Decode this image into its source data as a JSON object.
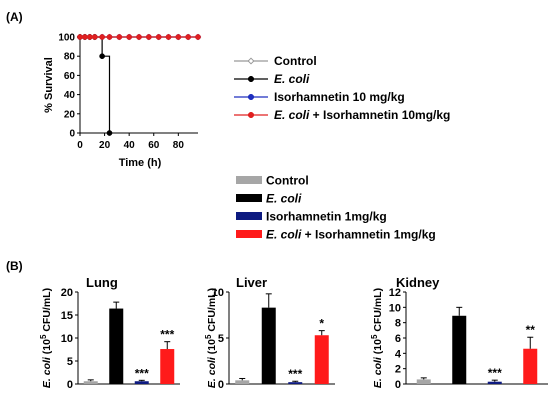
{
  "panel_labels": {
    "a": "(A)",
    "b": "(B)"
  },
  "chart_data": [
    {
      "type": "line",
      "panel": "(A)",
      "xlabel": "Time (h)",
      "ylabel": "% Survival",
      "xlim": [
        0,
        96
      ],
      "ylim": [
        0,
        100
      ],
      "xticks": [
        0,
        20,
        40,
        60,
        80
      ],
      "yticks": [
        0,
        20,
        40,
        60,
        80,
        100
      ],
      "grid": false,
      "legend": "right",
      "series": [
        {
          "name": "Control",
          "color": "#999999",
          "marker": "open-diamond",
          "x": [
            0,
            4,
            8,
            12,
            18,
            24,
            32,
            40,
            48,
            56,
            64,
            72,
            80,
            88,
            96
          ],
          "y": [
            100,
            100,
            100,
            100,
            100,
            100,
            100,
            100,
            100,
            100,
            100,
            100,
            100,
            100,
            100
          ]
        },
        {
          "name": "E. coli",
          "color": "#000000",
          "marker": "circle",
          "x": [
            0,
            4,
            8,
            12,
            18,
            24
          ],
          "y": [
            100,
            100,
            100,
            100,
            80,
            0
          ]
        },
        {
          "name": "Isorhamnetin 10 mg/kg",
          "color": "#1f2fbf",
          "marker": "circle",
          "x": [
            0,
            4,
            8,
            12,
            18,
            24,
            32,
            40,
            48,
            56,
            64,
            72,
            80,
            88,
            96
          ],
          "y": [
            100,
            100,
            100,
            100,
            100,
            100,
            100,
            100,
            100,
            100,
            100,
            100,
            100,
            100,
            100
          ]
        },
        {
          "name": "E. coli + Isorhamnetin 10mg/kg",
          "color": "#e02020",
          "marker": "circle",
          "x": [
            0,
            4,
            8,
            12,
            18,
            24,
            32,
            40,
            48,
            56,
            64,
            72,
            80,
            88,
            96
          ],
          "y": [
            100,
            100,
            100,
            100,
            100,
            100,
            100,
            100,
            100,
            100,
            100,
            100,
            100,
            100,
            100
          ]
        }
      ]
    },
    {
      "type": "bar",
      "panel": "(B)",
      "title": "Lung",
      "ylabel_pre": "E. coli",
      "ylabel_mid": " (10",
      "ylabel_sup": "5",
      "ylabel_post": " CFU/mL)",
      "ylim": [
        0,
        20
      ],
      "yticks": [
        0,
        5,
        10,
        15,
        20
      ],
      "categories": [
        "Control",
        "E. coli",
        "Isorhamnetin 1mg/kg",
        "E. coli + Isorhamnetin 1mg/kg"
      ],
      "values": [
        0.6,
        16.4,
        0.6,
        7.6
      ],
      "errors": [
        0.3,
        1.4,
        0.2,
        1.6
      ],
      "significance": [
        "",
        "",
        "***",
        "***"
      ]
    },
    {
      "type": "bar",
      "panel": "(B)",
      "title": "Liver",
      "ylabel_pre": "E. coli",
      "ylabel_mid": " (10",
      "ylabel_sup": "5",
      "ylabel_post": " CFU/mL)",
      "ylim": [
        0,
        10
      ],
      "yticks": [
        0,
        5,
        10
      ],
      "categories": [
        "Control",
        "E. coli",
        "Isorhamnetin 1mg/kg",
        "E. coli + Isorhamnetin 1mg/kg"
      ],
      "values": [
        0.4,
        8.3,
        0.2,
        5.3
      ],
      "errors": [
        0.2,
        1.5,
        0.1,
        0.5
      ],
      "significance": [
        "",
        "",
        "***",
        "*"
      ]
    },
    {
      "type": "bar",
      "panel": "(B)",
      "title": "Kidney",
      "ylabel_pre": "E. coli",
      "ylabel_mid": " (10",
      "ylabel_sup": "5",
      "ylabel_post": " CFU/mL)",
      "ylim": [
        0,
        12
      ],
      "yticks": [
        0,
        2,
        4,
        6,
        8,
        10,
        12
      ],
      "categories": [
        "Control",
        "E. coli",
        "Isorhamnetin 1mg/kg",
        "E. coli + Isorhamnetin 1mg/kg"
      ],
      "values": [
        0.6,
        8.9,
        0.3,
        4.6
      ],
      "errors": [
        0.2,
        1.1,
        0.2,
        1.5
      ],
      "significance": [
        "",
        "",
        "***",
        "**"
      ]
    }
  ],
  "bar_legend": [
    {
      "italic": "",
      "text": "Control",
      "color": "#a6a6a6"
    },
    {
      "italic": "E. coli",
      "text": "",
      "color": "#000000"
    },
    {
      "italic": "",
      "text": "Isorhamnetin 1mg/kg",
      "color": "#0d1a80"
    },
    {
      "italic": "E. coli",
      "text": " + Isorhamnetin 1mg/kg",
      "color": "#ff1a1a"
    }
  ],
  "line_legend": [
    {
      "italic": "",
      "text": "Control",
      "color": "#999999",
      "marker": "open-diamond"
    },
    {
      "italic": "E. coli",
      "text": "",
      "color": "#000000",
      "marker": "circle"
    },
    {
      "italic": "",
      "text": "Isorhamnetin 10 mg/kg",
      "color": "#1f2fbf",
      "marker": "circle"
    },
    {
      "italic": "E. coli",
      "text": " + Isorhamnetin 10mg/kg",
      "color": "#e02020",
      "marker": "circle"
    }
  ]
}
